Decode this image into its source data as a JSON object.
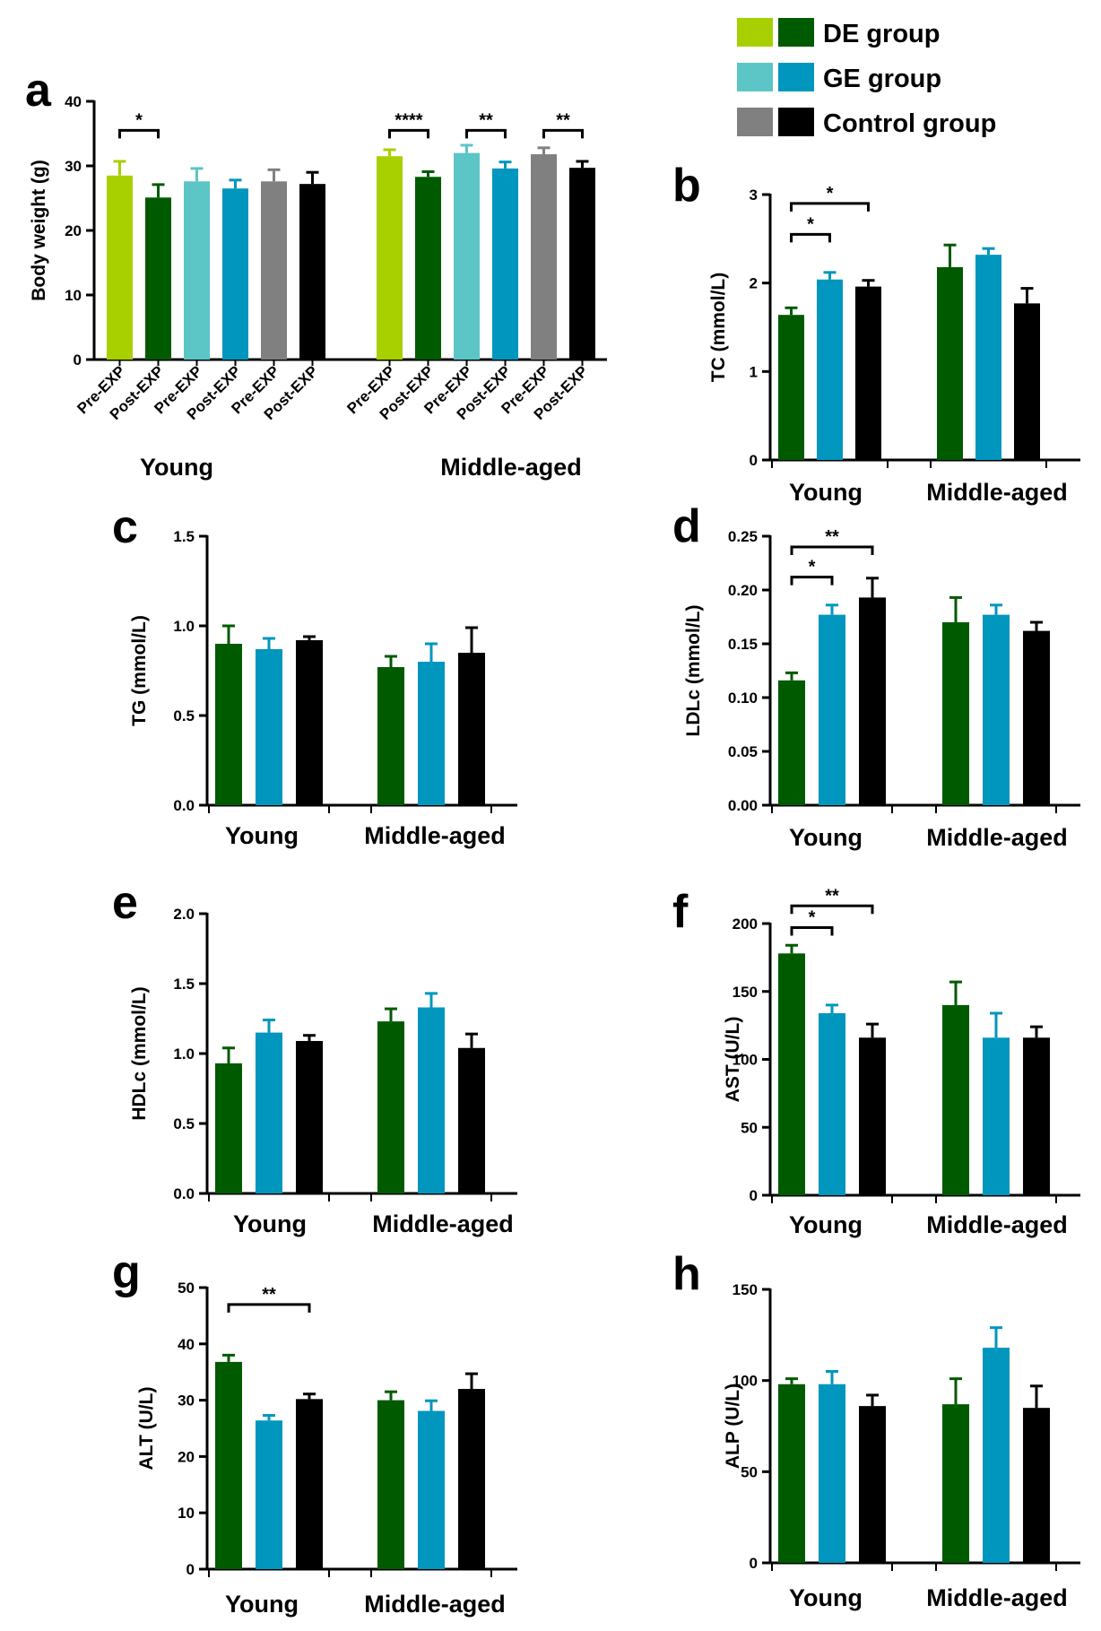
{
  "colors": {
    "de_pre": "#a8d000",
    "de": "#005a00",
    "ge_pre": "#5cc5c5",
    "ge": "#0096be",
    "ctrl_pre": "#808080",
    "ctrl": "#000000"
  },
  "legend": {
    "entries": [
      {
        "label": "DE group",
        "light": "#a8d000",
        "dark": "#005a00"
      },
      {
        "label": "GE group",
        "light": "#5cc5c5",
        "dark": "#0096be"
      },
      {
        "label": "Control group",
        "light": "#808080",
        "dark": "#000000"
      }
    ]
  },
  "chart_data": [
    {
      "panel": "a",
      "type": "bar",
      "ylabel": "Body weight (g)",
      "ylim": [
        0,
        40
      ],
      "yticks": [
        0,
        10,
        20,
        30,
        40
      ],
      "groups": [
        "Young",
        "Middle-aged"
      ],
      "categories": [
        "Pre-EXP",
        "Post-EXP",
        "Pre-EXP",
        "Post-EXP",
        "Pre-EXP",
        "Post-EXP"
      ],
      "bar_colors": [
        "#a8d000",
        "#005a00",
        "#5cc5c5",
        "#0096be",
        "#808080",
        "#000000"
      ],
      "series": [
        {
          "name": "Young",
          "values": [
            28.5,
            25.1,
            27.6,
            26.5,
            27.6,
            27.2
          ],
          "errors": [
            2.2,
            2.0,
            2.0,
            1.3,
            1.8,
            1.8
          ]
        },
        {
          "name": "Middle-aged",
          "values": [
            31.5,
            28.3,
            32.0,
            29.6,
            31.8,
            29.7
          ],
          "errors": [
            1.0,
            0.8,
            1.2,
            1.0,
            1.0,
            1.0
          ]
        }
      ],
      "significance": [
        {
          "group": 0,
          "from": 0,
          "to": 1,
          "label": "*",
          "y": 35.5
        },
        {
          "group": 1,
          "from": 0,
          "to": 1,
          "label": "****",
          "y": 35.5
        },
        {
          "group": 1,
          "from": 2,
          "to": 3,
          "label": "**",
          "y": 35.5
        },
        {
          "group": 1,
          "from": 4,
          "to": 5,
          "label": "**",
          "y": 35.5
        }
      ]
    },
    {
      "panel": "b",
      "type": "bar",
      "ylabel": "TC (mmol/L)",
      "ylim": [
        0,
        3
      ],
      "yticks": [
        0,
        1,
        2,
        3
      ],
      "ytick_labels": [
        "0",
        "1",
        "2",
        "3"
      ],
      "groups": [
        "Young",
        "Middle-aged"
      ],
      "series": [
        {
          "name": "DE group",
          "values": [
            1.64,
            2.18
          ],
          "errors": [
            0.08,
            0.25
          ]
        },
        {
          "name": "GE group",
          "values": [
            2.04,
            2.32
          ],
          "errors": [
            0.08,
            0.07
          ]
        },
        {
          "name": "Control group",
          "values": [
            1.96,
            1.77
          ],
          "errors": [
            0.07,
            0.17
          ]
        }
      ],
      "significance": [
        {
          "group": 0,
          "from": 0,
          "to": 1,
          "label": "*",
          "y": 2.55
        },
        {
          "group": 0,
          "from": 0,
          "to": 2,
          "label": "*",
          "y": 2.9
        }
      ]
    },
    {
      "panel": "c",
      "type": "bar",
      "ylabel": "TG (mmol/L)",
      "ylim": [
        0,
        1.5
      ],
      "yticks": [
        0,
        0.5,
        1.0,
        1.5
      ],
      "ytick_labels": [
        "0.0",
        "0.5",
        "1.0",
        "1.5"
      ],
      "groups": [
        "Young",
        "Middle-aged"
      ],
      "series": [
        {
          "name": "DE group",
          "values": [
            0.9,
            0.77
          ],
          "errors": [
            0.1,
            0.06
          ]
        },
        {
          "name": "GE group",
          "values": [
            0.87,
            0.8
          ],
          "errors": [
            0.06,
            0.1
          ]
        },
        {
          "name": "Control group",
          "values": [
            0.92,
            0.85
          ],
          "errors": [
            0.02,
            0.14
          ]
        }
      ],
      "significance": []
    },
    {
      "panel": "d",
      "type": "bar",
      "ylabel": "LDLc (mmol/L)",
      "ylim": [
        0,
        0.25
      ],
      "yticks": [
        0,
        0.05,
        0.1,
        0.15,
        0.2,
        0.25
      ],
      "ytick_labels": [
        "0.00",
        "0.05",
        "0.10",
        "0.15",
        "0.20",
        "0.25"
      ],
      "groups": [
        "Young",
        "Middle-aged"
      ],
      "series": [
        {
          "name": "DE group",
          "values": [
            0.116,
            0.17
          ],
          "errors": [
            0.007,
            0.023
          ]
        },
        {
          "name": "GE group",
          "values": [
            0.177,
            0.177
          ],
          "errors": [
            0.009,
            0.009
          ]
        },
        {
          "name": "Control group",
          "values": [
            0.193,
            0.162
          ],
          "errors": [
            0.018,
            0.008
          ]
        }
      ],
      "significance": [
        {
          "group": 0,
          "from": 0,
          "to": 1,
          "label": "*",
          "y": 0.212
        },
        {
          "group": 0,
          "from": 0,
          "to": 2,
          "label": "**",
          "y": 0.24
        }
      ]
    },
    {
      "panel": "e",
      "type": "bar",
      "ylabel": "HDLc (mmol/L)",
      "ylim": [
        0,
        2.0
      ],
      "yticks": [
        0,
        0.5,
        1.0,
        1.5,
        2.0
      ],
      "ytick_labels": [
        "0.0",
        "0.5",
        "1.0",
        "1.5",
        "2.0"
      ],
      "groups": [
        "Young",
        "Middle-aged"
      ],
      "series": [
        {
          "name": "DE group",
          "values": [
            0.93,
            1.23
          ],
          "errors": [
            0.11,
            0.09
          ]
        },
        {
          "name": "GE group",
          "values": [
            1.15,
            1.33
          ],
          "errors": [
            0.09,
            0.1
          ]
        },
        {
          "name": "Control group",
          "values": [
            1.09,
            1.04
          ],
          "errors": [
            0.04,
            0.1
          ]
        }
      ],
      "significance": []
    },
    {
      "panel": "f",
      "type": "bar",
      "ylabel": "AST (U/L)",
      "ylim": [
        0,
        200
      ],
      "yticks": [
        0,
        50,
        100,
        150,
        200
      ],
      "ytick_labels": [
        "0",
        "50",
        "100",
        "150",
        "200"
      ],
      "groups": [
        "Young",
        "Middle-aged"
      ],
      "series": [
        {
          "name": "DE group",
          "values": [
            178,
            140
          ],
          "errors": [
            6,
            17
          ]
        },
        {
          "name": "GE group",
          "values": [
            134,
            116
          ],
          "errors": [
            6,
            18
          ]
        },
        {
          "name": "Control group",
          "values": [
            116,
            116
          ],
          "errors": [
            10,
            8
          ]
        }
      ],
      "significance": [
        {
          "group": 0,
          "from": 0,
          "to": 1,
          "label": "*",
          "y": 197
        },
        {
          "group": 0,
          "from": 0,
          "to": 2,
          "label": "**",
          "y": 213
        }
      ]
    },
    {
      "panel": "g",
      "type": "bar",
      "ylabel": "ALT (U/L)",
      "ylim": [
        0,
        50
      ],
      "yticks": [
        0,
        10,
        20,
        30,
        40,
        50
      ],
      "ytick_labels": [
        "0",
        "10",
        "20",
        "30",
        "40",
        "50"
      ],
      "groups": [
        "Young",
        "Middle-aged"
      ],
      "series": [
        {
          "name": "DE group",
          "values": [
            36.8,
            30.0
          ],
          "errors": [
            1.2,
            1.5
          ]
        },
        {
          "name": "GE group",
          "values": [
            26.4,
            28.1
          ],
          "errors": [
            0.9,
            1.8
          ]
        },
        {
          "name": "Control group",
          "values": [
            30.2,
            32.0
          ],
          "errors": [
            0.9,
            2.7
          ]
        }
      ],
      "significance": [
        {
          "group": 0,
          "from": 0,
          "to": 2,
          "label": "**",
          "y": 47
        }
      ]
    },
    {
      "panel": "h",
      "type": "bar",
      "ylabel": "ALP (U/L)",
      "ylim": [
        0,
        150
      ],
      "yticks": [
        0,
        50,
        100,
        150
      ],
      "ytick_labels": [
        "0",
        "50",
        "100",
        "150"
      ],
      "groups": [
        "Young",
        "Middle-aged"
      ],
      "series": [
        {
          "name": "DE group",
          "values": [
            98,
            87
          ],
          "errors": [
            3,
            14
          ]
        },
        {
          "name": "GE group",
          "values": [
            98,
            118
          ],
          "errors": [
            7,
            11
          ]
        },
        {
          "name": "Control group",
          "values": [
            86,
            85
          ],
          "errors": [
            6,
            12
          ]
        }
      ],
      "significance": []
    }
  ]
}
